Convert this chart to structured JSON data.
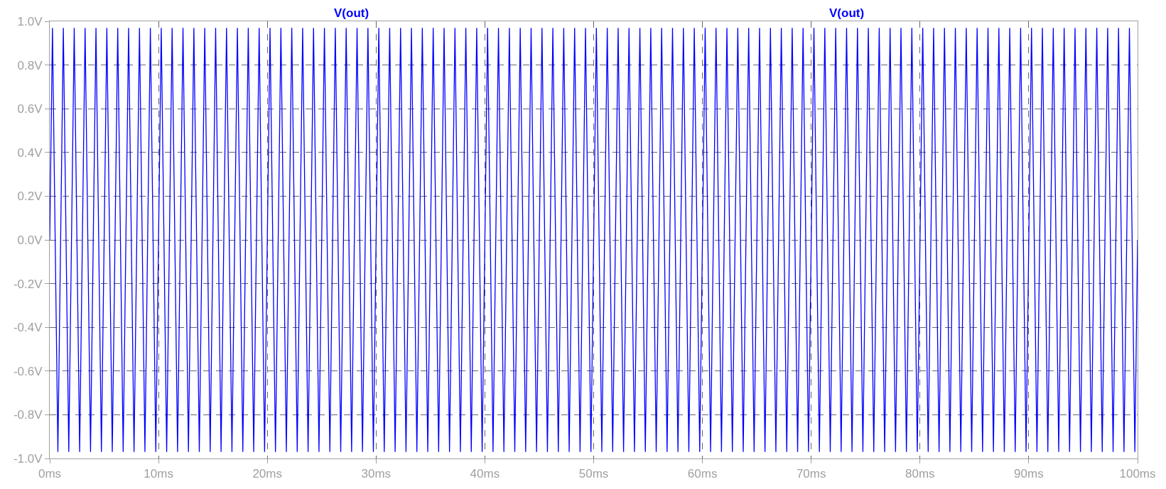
{
  "chart_data": {
    "type": "line",
    "annotations": [
      "V(out)",
      "V(out)"
    ],
    "xlim": [
      0,
      100
    ],
    "xticks": [
      {
        "value": 0,
        "label": "0ms"
      },
      {
        "value": 10,
        "label": "10ms"
      },
      {
        "value": 20,
        "label": "20ms"
      },
      {
        "value": 30,
        "label": "30ms"
      },
      {
        "value": 40,
        "label": "40ms"
      },
      {
        "value": 50,
        "label": "50ms"
      },
      {
        "value": 60,
        "label": "60ms"
      },
      {
        "value": 70,
        "label": "70ms"
      },
      {
        "value": 80,
        "label": "80ms"
      },
      {
        "value": 90,
        "label": "90ms"
      },
      {
        "value": 100,
        "label": "100ms"
      }
    ],
    "ylim": [
      -1.0,
      1.0
    ],
    "yticks": [
      {
        "value": 1.0,
        "label": "1.0V"
      },
      {
        "value": 0.8,
        "label": "0.8V"
      },
      {
        "value": 0.6,
        "label": "0.6V"
      },
      {
        "value": 0.4,
        "label": "0.4V"
      },
      {
        "value": 0.2,
        "label": "0.2V"
      },
      {
        "value": 0.0,
        "label": "0.0V"
      },
      {
        "value": -0.2,
        "label": "-0.2V"
      },
      {
        "value": -0.4,
        "label": "-0.4V"
      },
      {
        "value": -0.6,
        "label": "-0.6V"
      },
      {
        "value": -0.8,
        "label": "-0.8V"
      },
      {
        "value": -1.0,
        "label": "-1.0V"
      }
    ],
    "grid": true,
    "line_style": "solid",
    "series": [
      {
        "color": "#0000ff",
        "x": [
          0,
          0.25,
          0.75,
          1.25,
          1.75,
          2.25,
          2.75,
          3.25,
          3.75,
          4.25,
          4.75,
          5.25,
          5.75,
          6.25,
          6.75,
          7.25,
          7.75,
          8.25,
          8.75,
          9.25,
          9.75,
          10.25,
          10.75,
          11.25,
          11.75,
          12.25,
          12.75,
          13.25,
          13.75,
          14.25,
          14.75,
          15.25,
          15.75,
          16.25,
          16.75,
          17.25,
          17.75,
          18.25,
          18.75,
          19.25,
          19.75,
          20.25,
          20.75,
          21.25,
          21.75,
          22.25,
          22.75,
          23.25,
          23.75,
          24.25,
          24.75,
          25.25,
          25.75,
          26.25,
          26.75,
          27.25,
          27.75,
          28.25,
          28.75,
          29.25,
          29.75,
          30.25,
          30.75,
          31.25,
          31.75,
          32.25,
          32.75,
          33.25,
          33.75,
          34.25,
          34.75,
          35.25,
          35.75,
          36.25,
          36.75,
          37.25,
          37.75,
          38.25,
          38.75,
          39.25,
          39.75,
          40.25,
          40.75,
          41.25,
          41.75,
          42.25,
          42.75,
          43.25,
          43.75,
          44.25,
          44.75,
          45.25,
          45.75,
          46.25,
          46.75,
          47.25,
          47.75,
          48.25,
          48.75,
          49.25,
          49.75,
          50.25,
          50.75,
          51.25,
          51.75,
          52.25,
          52.75,
          53.25,
          53.75,
          54.25,
          54.75,
          55.25,
          55.75,
          56.25,
          56.75,
          57.25,
          57.75,
          58.25,
          58.75,
          59.25,
          59.75,
          60.25,
          60.75,
          61.25,
          61.75,
          62.25,
          62.75,
          63.25,
          63.75,
          64.25,
          64.75,
          65.25,
          65.75,
          66.25,
          66.75,
          67.25,
          67.75,
          68.25,
          68.75,
          69.25,
          69.75,
          70.25,
          70.75,
          71.25,
          71.75,
          72.25,
          72.75,
          73.25,
          73.75,
          74.25,
          74.75,
          75.25,
          75.75,
          76.25,
          76.75,
          77.25,
          77.75,
          78.25,
          78.75,
          79.25,
          79.75,
          80.25,
          80.75,
          81.25,
          81.75,
          82.25,
          82.75,
          83.25,
          83.75,
          84.25,
          84.75,
          85.25,
          85.75,
          86.25,
          86.75,
          87.25,
          87.75,
          88.25,
          88.75,
          89.25,
          89.75,
          90.25,
          90.75,
          91.25,
          91.75,
          92.25,
          92.75,
          93.25,
          93.75,
          94.25,
          94.75,
          95.25,
          95.75,
          96.25,
          96.75,
          97.25,
          97.75,
          98.25,
          98.75,
          99.25,
          99.75,
          100
        ],
        "values": [
          0,
          0.97,
          -0.97,
          0.97,
          -0.97,
          0.97,
          -0.97,
          0.97,
          -0.97,
          0.97,
          -0.97,
          0.97,
          -0.97,
          0.97,
          -0.97,
          0.97,
          -0.97,
          0.97,
          -0.97,
          0.97,
          -0.97,
          0.97,
          -0.97,
          0.97,
          -0.97,
          0.97,
          -0.97,
          0.97,
          -0.97,
          0.97,
          -0.97,
          0.97,
          -0.97,
          0.97,
          -0.97,
          0.97,
          -0.97,
          0.97,
          -0.97,
          0.97,
          -0.97,
          0.97,
          -0.97,
          0.97,
          -0.97,
          0.97,
          -0.97,
          0.97,
          -0.97,
          0.97,
          -0.97,
          0.97,
          -0.97,
          0.97,
          -0.97,
          0.97,
          -0.97,
          0.97,
          -0.97,
          0.97,
          -0.97,
          0.97,
          -0.97,
          0.97,
          -0.97,
          0.97,
          -0.97,
          0.97,
          -0.97,
          0.97,
          -0.97,
          0.97,
          -0.97,
          0.97,
          -0.97,
          0.97,
          -0.97,
          0.97,
          -0.97,
          0.97,
          -0.97,
          0.97,
          -0.97,
          0.97,
          -0.97,
          0.97,
          -0.97,
          0.97,
          -0.97,
          0.97,
          -0.97,
          0.97,
          -0.97,
          0.97,
          -0.97,
          0.97,
          -0.97,
          0.97,
          -0.97,
          0.97,
          -0.97,
          0.97,
          -0.97,
          0.97,
          -0.97,
          0.97,
          -0.97,
          0.97,
          -0.97,
          0.97,
          -0.97,
          0.97,
          -0.97,
          0.97,
          -0.97,
          0.97,
          -0.97,
          0.97,
          -0.97,
          0.97,
          -0.97,
          0.97,
          -0.97,
          0.97,
          -0.97,
          0.97,
          -0.97,
          0.97,
          -0.97,
          0.97,
          -0.97,
          0.97,
          -0.97,
          0.97,
          -0.97,
          0.97,
          -0.97,
          0.97,
          -0.97,
          0.97,
          -0.97,
          0.97,
          -0.97,
          0.97,
          -0.97,
          0.97,
          -0.97,
          0.97,
          -0.97,
          0.97,
          -0.97,
          0.97,
          -0.97,
          0.97,
          -0.97,
          0.97,
          -0.97,
          0.97,
          -0.97,
          0.97,
          -0.97,
          0.97,
          -0.97,
          0.97,
          -0.97,
          0.97,
          -0.97,
          0.97,
          -0.97,
          0.97,
          -0.97,
          0.97,
          -0.97,
          0.97,
          -0.97,
          0.97,
          -0.97,
          0.97,
          -0.97,
          0.97,
          -0.97,
          0.97,
          -0.97,
          0.97,
          -0.97,
          0.97,
          -0.97,
          0.97,
          -0.97,
          0.97,
          -0.97,
          0.97,
          -0.97,
          0.97,
          -0.97,
          0.97,
          -0.97,
          0.97,
          -0.97,
          0.97,
          -0.97,
          0
        ]
      }
    ]
  }
}
